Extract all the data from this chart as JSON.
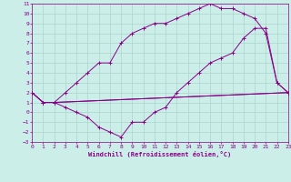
{
  "xlabel": "Windchill (Refroidissement éolien,°C)",
  "bg_color": "#cceee8",
  "grid_color": "#aad4cc",
  "line_color": "#880088",
  "xlim": [
    0,
    23
  ],
  "ylim": [
    -3,
    11
  ],
  "xticks": [
    0,
    1,
    2,
    3,
    4,
    5,
    6,
    7,
    8,
    9,
    10,
    11,
    12,
    13,
    14,
    15,
    16,
    17,
    18,
    19,
    20,
    21,
    22,
    23
  ],
  "yticks": [
    -3,
    -2,
    -1,
    0,
    1,
    2,
    3,
    4,
    5,
    6,
    7,
    8,
    9,
    10,
    11
  ],
  "line1_x": [
    0,
    1,
    2,
    23
  ],
  "line1_y": [
    2,
    1,
    1,
    2
  ],
  "line2_x": [
    0,
    1,
    2,
    3,
    4,
    5,
    6,
    7,
    8,
    9,
    10,
    11,
    12,
    13,
    14,
    15,
    16,
    17,
    18,
    19,
    20,
    21,
    22,
    23
  ],
  "line2_y": [
    2,
    1,
    1,
    2,
    3,
    4,
    5,
    5,
    7,
    8,
    8.5,
    9,
    9,
    9.5,
    10,
    10.5,
    11,
    10.5,
    10.5,
    10,
    9.5,
    8,
    3,
    2
  ],
  "line3_x": [
    0,
    1,
    2,
    3,
    4,
    5,
    6,
    7,
    8,
    9,
    10,
    11,
    12,
    13,
    14,
    15,
    16,
    17,
    18,
    19,
    20,
    21,
    22,
    23
  ],
  "line3_y": [
    2,
    1,
    1,
    0.5,
    0,
    -0.5,
    -1.5,
    -2,
    -2.5,
    -1,
    -1,
    0,
    0.5,
    2,
    3,
    4,
    5,
    5.5,
    6,
    7.5,
    8.5,
    8.5,
    3,
    2
  ],
  "line4_x": [
    1,
    2,
    23
  ],
  "line4_y": [
    1,
    1,
    2
  ]
}
